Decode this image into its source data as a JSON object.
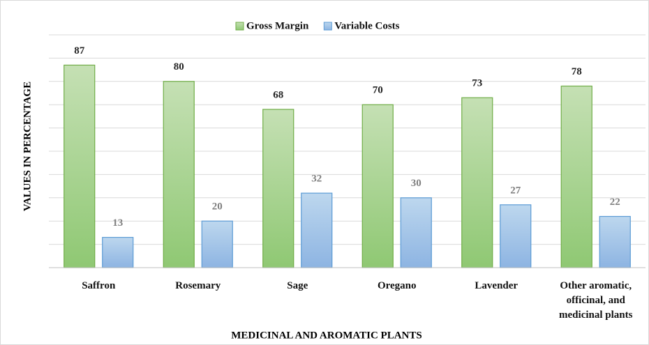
{
  "chart_data": {
    "type": "bar",
    "x_label": "MEDICINAL AND AROMATIC PLANTS",
    "y_label": "VALUES IN PERCENTAGE",
    "categories": [
      "Saffron",
      "Rosemary",
      "Sage",
      "Oregano",
      "Lavender",
      "Other aromatic, officinal, and medicinal plants"
    ],
    "series": [
      {
        "name": "Gross Margin",
        "color": "#70ad47",
        "values": [
          87,
          80,
          68,
          70,
          73,
          78
        ]
      },
      {
        "name": "Variable Costs",
        "color": "#5b9bd5",
        "values": [
          13,
          20,
          32,
          30,
          27,
          22
        ]
      }
    ],
    "ylim": [
      0,
      100
    ],
    "yticks": [
      0,
      10,
      20,
      30,
      40,
      50,
      60,
      70,
      80,
      90,
      100
    ],
    "grid": true,
    "legend": "top"
  }
}
